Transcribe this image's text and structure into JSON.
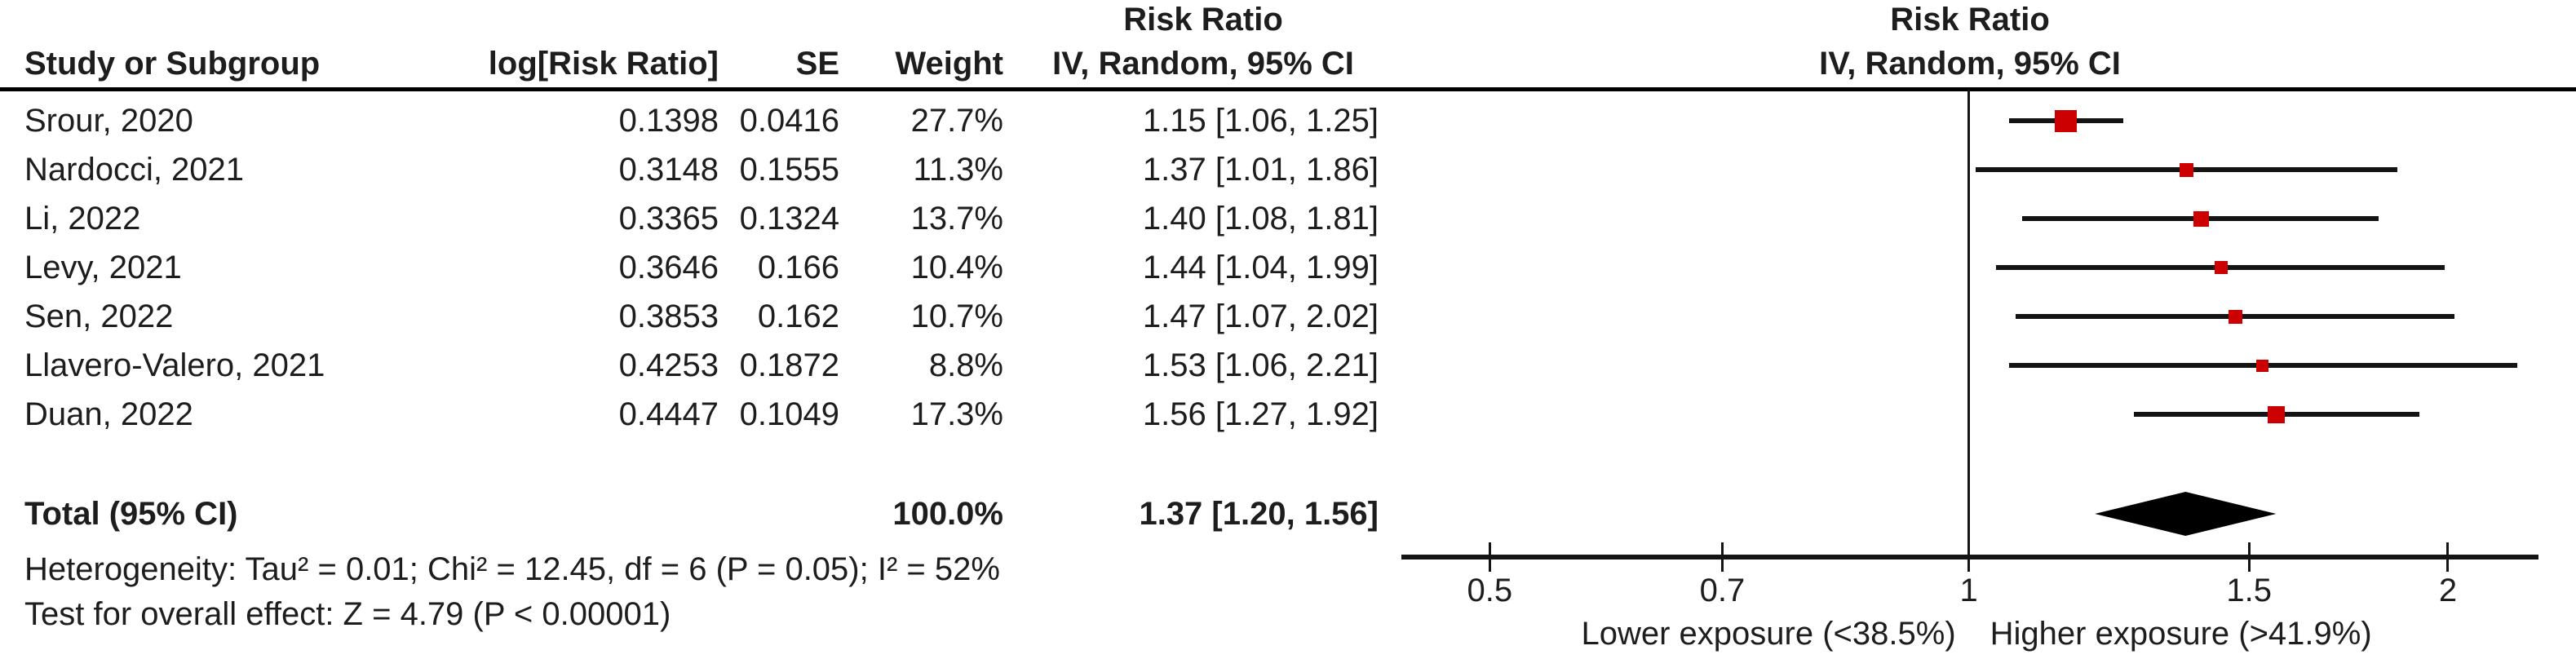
{
  "header": {
    "table_effect_title": "Risk Ratio",
    "plot_effect_title": "Risk Ratio",
    "plot_subtitle": "IV, Random, 95% CI",
    "columns": [
      "Study or Subgroup",
      "log[Risk Ratio]",
      "SE",
      "Weight",
      "IV, Random, 95% CI"
    ]
  },
  "colors": {
    "marker": "#CC0000",
    "diamond": "#000000",
    "line": "#141414"
  },
  "chart_data": {
    "type": "forest",
    "effect_measure": "Risk Ratio",
    "model": "IV, Random, 95% CI",
    "x_scale": "log",
    "axis": {
      "min": 0.44,
      "max": 2.28,
      "null_value": 1,
      "ticks": [
        0.5,
        0.7,
        1,
        1.5,
        2
      ],
      "left_label": "Lower exposure (<38.5%)",
      "right_label": "Higher exposure (>41.9%)"
    },
    "studies": [
      {
        "study": "Srour, 2020",
        "log_rr": "0.1398",
        "se": "0.0416",
        "weight": "27.7%",
        "weight_pct": 27.7,
        "rr": 1.15,
        "lo": 1.06,
        "hi": 1.25,
        "ci_text": "1.15 [1.06, 1.25]"
      },
      {
        "study": "Nardocci, 2021",
        "log_rr": "0.3148",
        "se": "0.1555",
        "weight": "11.3%",
        "weight_pct": 11.3,
        "rr": 1.37,
        "lo": 1.01,
        "hi": 1.86,
        "ci_text": "1.37 [1.01, 1.86]"
      },
      {
        "study": "Li, 2022",
        "log_rr": "0.3365",
        "se": "0.1324",
        "weight": "13.7%",
        "weight_pct": 13.7,
        "rr": 1.4,
        "lo": 1.08,
        "hi": 1.81,
        "ci_text": "1.40 [1.08, 1.81]"
      },
      {
        "study": "Levy, 2021",
        "log_rr": "0.3646",
        "se": "0.166",
        "weight": "10.4%",
        "weight_pct": 10.4,
        "rr": 1.44,
        "lo": 1.04,
        "hi": 1.99,
        "ci_text": "1.44 [1.04, 1.99]"
      },
      {
        "study": "Sen, 2022",
        "log_rr": "0.3853",
        "se": "0.162",
        "weight": "10.7%",
        "weight_pct": 10.7,
        "rr": 1.47,
        "lo": 1.07,
        "hi": 2.02,
        "ci_text": "1.47 [1.07, 2.02]"
      },
      {
        "study": "Llavero-Valero, 2021",
        "log_rr": "0.4253",
        "se": "0.1872",
        "weight": "8.8%",
        "weight_pct": 8.8,
        "rr": 1.53,
        "lo": 1.06,
        "hi": 2.21,
        "ci_text": "1.53 [1.06, 2.21]"
      },
      {
        "study": "Duan, 2022",
        "log_rr": "0.4447",
        "se": "0.1049",
        "weight": "17.3%",
        "weight_pct": 17.3,
        "rr": 1.56,
        "lo": 1.27,
        "hi": 1.92,
        "ci_text": "1.56 [1.27, 1.92]"
      }
    ],
    "total": {
      "label": "Total (95% CI)",
      "weight": "100.0%",
      "rr": 1.37,
      "lo": 1.2,
      "hi": 1.56,
      "ci_text": "1.37 [1.20, 1.56]"
    },
    "footnotes": {
      "heterogeneity": "Heterogeneity: Tau² = 0.01; Chi² = 12.45, df = 6 (P = 0.05); I² = 52%",
      "overall_effect": "Test for overall effect: Z = 4.79 (P < 0.00001)"
    }
  }
}
